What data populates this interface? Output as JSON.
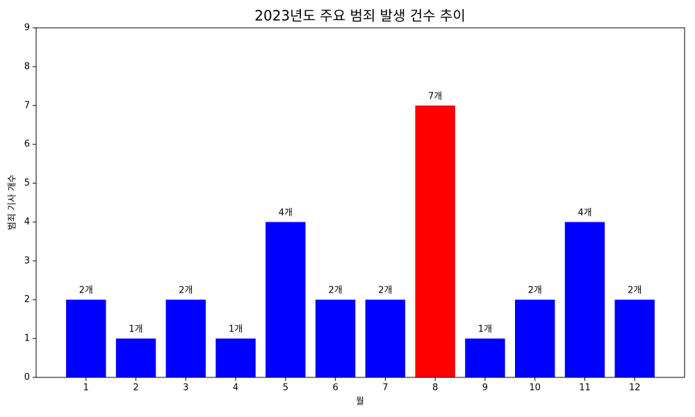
{
  "chart_data": {
    "type": "bar",
    "title": "2023년도 주요 범죄 발생 건수 추이",
    "xlabel": "월",
    "ylabel": "범죄 기사 개수",
    "categories": [
      "1",
      "2",
      "3",
      "4",
      "5",
      "6",
      "7",
      "8",
      "9",
      "10",
      "11",
      "12"
    ],
    "values": [
      2,
      1,
      2,
      1,
      4,
      2,
      2,
      7,
      1,
      2,
      4,
      2
    ],
    "value_labels": [
      "2개",
      "1개",
      "2개",
      "1개",
      "4개",
      "2개",
      "2개",
      "7개",
      "1개",
      "2개",
      "4개",
      "2개"
    ],
    "colors": [
      "#0000ff",
      "#0000ff",
      "#0000ff",
      "#0000ff",
      "#0000ff",
      "#0000ff",
      "#0000ff",
      "#ff0000",
      "#0000ff",
      "#0000ff",
      "#0000ff",
      "#0000ff"
    ],
    "ylim": [
      0,
      9
    ],
    "yticks": [
      0,
      1,
      2,
      3,
      4,
      5,
      6,
      7,
      8,
      9
    ],
    "grid": false
  }
}
